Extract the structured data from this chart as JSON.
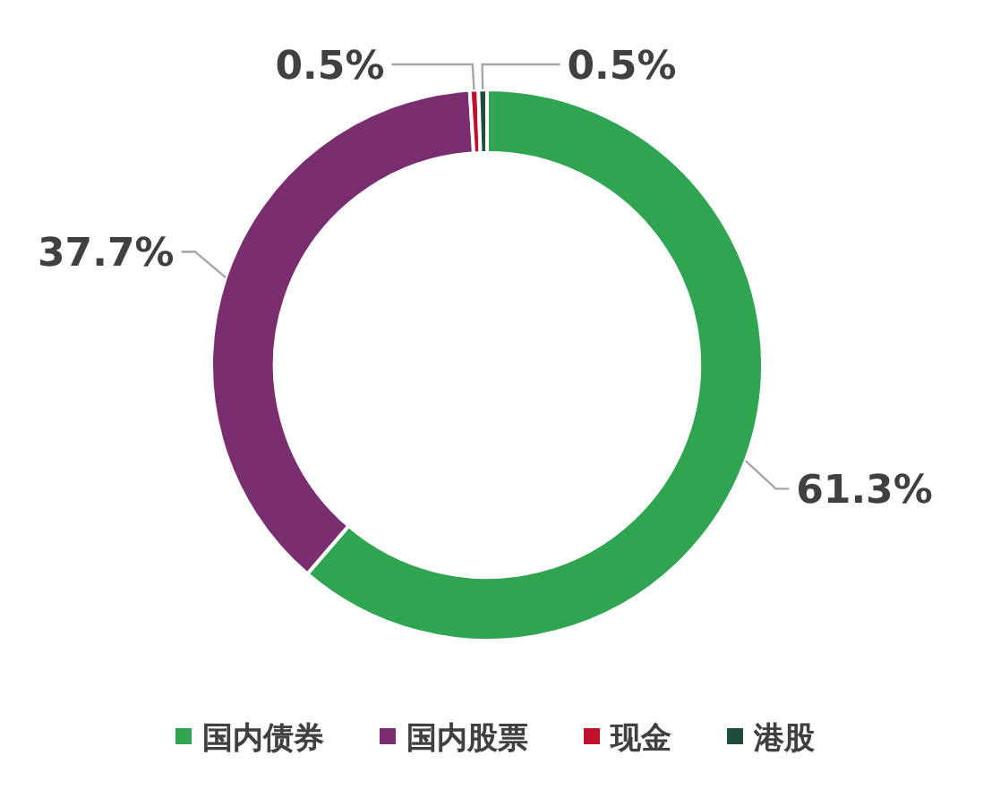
{
  "chart_data": {
    "type": "donut",
    "categories": [
      "国内债券",
      "国内股票",
      "现金",
      "港股"
    ],
    "values": [
      61.3,
      37.7,
      0.5,
      0.5
    ],
    "colors": [
      "#2fa551",
      "#7b2e6f",
      "#c0102a",
      "#1e4d3a"
    ],
    "value_labels": [
      "61.3%",
      "37.7%",
      "0.5%",
      "0.5%"
    ],
    "legend": "bottom"
  }
}
